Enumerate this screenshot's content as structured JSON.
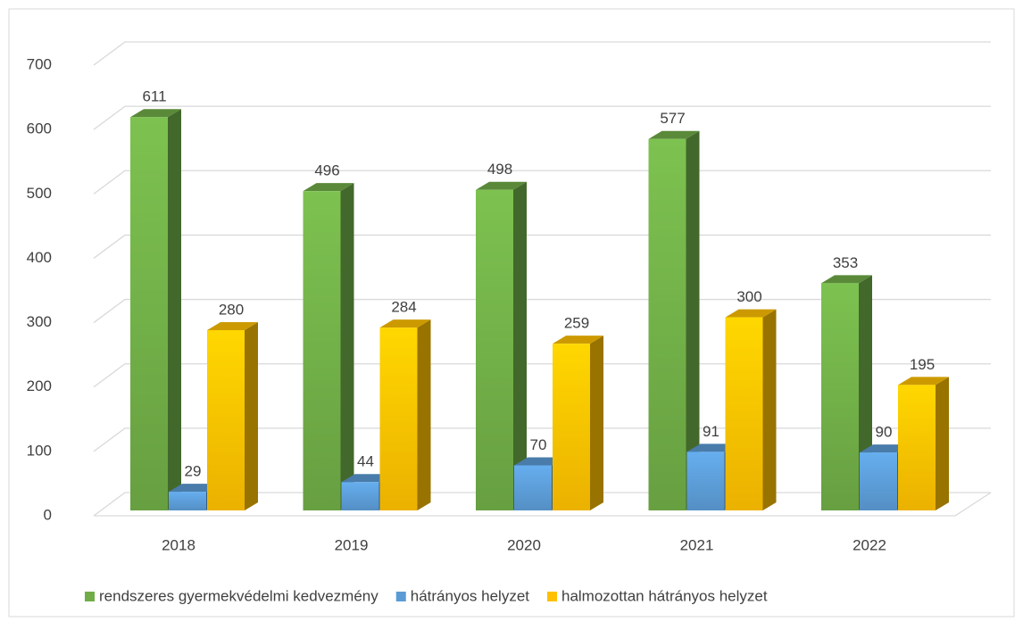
{
  "chart_data": {
    "type": "bar3d",
    "categories": [
      "2018",
      "2019",
      "2020",
      "2021",
      "2022"
    ],
    "series": [
      {
        "name": "rendszeres gyermekvédelmi kedvezmény",
        "color": "#70ad47",
        "values": [
          611,
          496,
          498,
          577,
          353
        ]
      },
      {
        "name": "hátrányos helyzet",
        "color": "#5b9bd5",
        "values": [
          29,
          44,
          70,
          91,
          90
        ]
      },
      {
        "name": "halmozottan hátrányos helyzet",
        "color": "#ffc000",
        "values": [
          280,
          284,
          259,
          300,
          195
        ]
      }
    ],
    "ylim": [
      0,
      700
    ],
    "yticks": [
      0,
      100,
      200,
      300,
      400,
      500,
      600,
      700
    ],
    "grid": true,
    "legend": "bottom"
  }
}
